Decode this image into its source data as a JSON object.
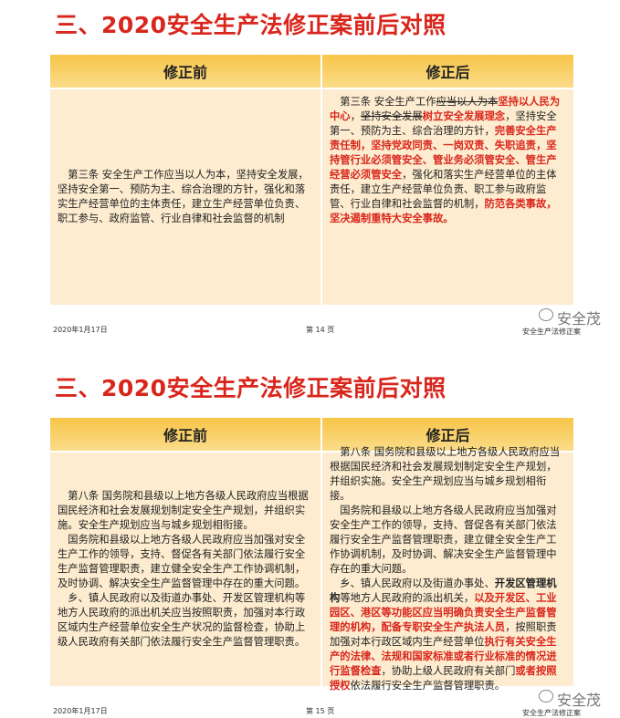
{
  "slides": [
    {
      "title": "三、2020安全生产法修正案前后对照",
      "table": {
        "headers": [
          "修正前",
          "修正后"
        ],
        "cells": [
          [
            [
              {
                "text": "第三条 安全生产工作应当以人为本，坚持安全发展，坚持安全第一、预防为主、综合治理的方针，强化和落实生产经营单位的主体责任，建立生产经营单位负责、职工参与、政府监管、行业自律和社会监督的机制"
              }
            ]
          ],
          [
            [
              {
                "text": "第三条 安全生产工作"
              },
              {
                "text": "应当以人为本",
                "strike": true
              },
              {
                "text": "坚持以人民为中心",
                "color": "#d9261c",
                "bold": true
              },
              {
                "text": "，"
              },
              {
                "text": "坚持安全发展",
                "strike": true
              },
              {
                "text": "树立安全发展理念",
                "color": "#d9261c",
                "bold": true
              },
              {
                "text": "，坚持安全第一、预防为主、综合治理的方针，"
              },
              {
                "text": "完善安全生产责任制，坚持党政同责、一岗双责、失职追责，坚持管行业必须管安全、管业务必须管安全、管生产经营必须管安全",
                "color": "#d9261c",
                "bold": true
              },
              {
                "text": "，强化和落实生产经营单位的主体责任，建立生产经营单位负责、职工参与政府监管、行业自律和社会监督的机制，"
              },
              {
                "text": "防范各类事故，坚决遏制重特大安全事故。",
                "color": "#d9261c",
                "bold": true
              }
            ]
          ]
        ]
      },
      "footer": {
        "date": "2020年1月17日",
        "page": "第 14 页",
        "brand": "安全生产法修正案"
      },
      "watermark": "安全茂"
    },
    {
      "title": "三、2020安全生产法修正案前后对照",
      "table": {
        "headers": [
          "修正前",
          "修正后"
        ],
        "cells": [
          [
            [
              {
                "text": "第八条 国务院和县级以上地方各级人民政府应当根据国民经济和社会发展规划制定安全生产规划，并组织实施。安全生产规划应当与城乡规划相衔接。"
              }
            ],
            [
              {
                "text": "国务院和县级以上地方各级人民政府应当加强对安全生产工作的领导，支持、督促各有关部门依法履行安全生产监督管理职责，建立健全安全生产工作协调机制，及时协调、解决安全生产监督管理中存在的重大问题。"
              }
            ],
            [
              {
                "text": "乡、镇人民政府以及街道办事处、开发区管理机构等地方人民政府的派出机关应当按照职责，加强对本行政区域内生产经营单位安全生产状况的监督检查，协助上级人民政府有关部门依法履行安全生产监督管理职责。"
              }
            ]
          ],
          [
            [
              {
                "text": "第八条 国务院和县级以上地方各级人民政府应当根据国民经济和社会发展规划制定安全生产规划，并组织实施。安全生产规划应当与城乡规划相衔接。"
              }
            ],
            [
              {
                "text": "国务院和县级以上地方各级人民政府应当加强对安全生产工作的领导，支持、督促各有关部门依法履行安全生产监督管理职责，建立健全安全生产工作协调机制，及时协调、解决安全生产监督管理中存在的重大问题。"
              }
            ],
            [
              {
                "text": "乡、镇人民政府以及街道办事处、"
              },
              {
                "text": "开发区管理机构",
                "bold": true
              },
              {
                "text": "等地方人民政府的派出机关，"
              },
              {
                "text": "以及开发区、工业园区、港区等功能区应当明确负责安全生产监督管理的机构，配备专职安全生产执法人员",
                "color": "#d9261c",
                "bold": true
              },
              {
                "text": "，按照职责加强对本行政区域内生产经营单位"
              },
              {
                "text": "执行有关安全生产的法律、法规和国家标准或者行业标准的情况进行监督检查",
                "color": "#d9261c",
                "bold": true
              },
              {
                "text": "，协助上级人民政府有关部门"
              },
              {
                "text": "或者按照授权",
                "color": "#d9261c",
                "bold": true
              },
              {
                "text": "依法履行安全生产监督管理职责。"
              }
            ]
          ]
        ]
      },
      "footer": {
        "date": "2020年1月17日",
        "page": "第 15 页",
        "brand": "安全生产法修正案"
      },
      "watermark": "安全茂"
    }
  ]
}
